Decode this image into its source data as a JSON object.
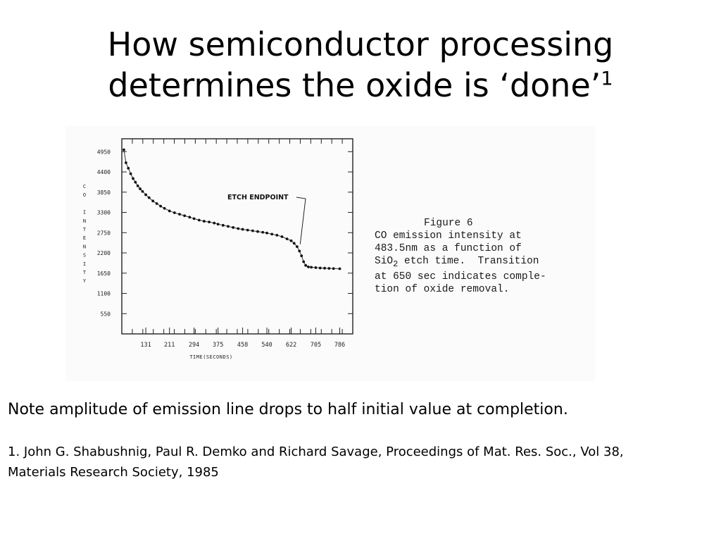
{
  "slide": {
    "title_line1": "How semiconductor processing",
    "title_line2": "determines the oxide is ‘done’",
    "title_superscript": "1",
    "note": "Note amplitude of emission line drops to half initial value at completion.",
    "reference_line1": "1. John G. Shabushnig, Paul R. Demko and Richard Savage, Proceedings of Mat. Res. Soc., Vol 38,",
    "reference_line2": "Materials Research Society, 1985"
  },
  "figure": {
    "caption_title": "Figure 6",
    "caption_lines": [
      "CO emission intensity at",
      "483.5nm as a function of",
      "SiO",
      "at 650 sec indicates comple-",
      "tion of oxide removal."
    ],
    "caption_sio2_subscript": "2",
    "caption_sio2_rest": " etch time.  Transition"
  },
  "chart_data": {
    "type": "scatter",
    "xlabel": "TIME(SECONDS)",
    "ylabel": "CO INTENSITY",
    "xlim": [
      50,
      830
    ],
    "ylim": [
      0,
      5300
    ],
    "x_ticks": [
      "131",
      "211",
      "294",
      "375",
      "458",
      "540",
      "622",
      "705",
      "786"
    ],
    "y_ticks": [
      "550",
      "1100",
      "1650",
      "2200",
      "2750",
      "3300",
      "3850",
      "4400",
      "4950"
    ],
    "annotation": "ETCH ENDPOINT",
    "annotation_x": 650,
    "annotation_y": 2320,
    "grid": false,
    "series": [
      {
        "x": [
          57,
          64,
          72,
          80,
          88,
          96,
          104,
          112,
          120,
          131,
          142,
          155,
          168,
          181,
          194,
          211,
          228,
          245,
          262,
          279,
          294,
          311,
          328,
          345,
          362,
          375,
          392,
          409,
          426,
          443,
          458,
          475,
          492,
          509,
          526,
          540,
          557,
          574,
          591,
          608,
          622,
          632,
          642,
          650,
          657,
          664,
          671,
          680,
          690,
          705,
          720,
          735,
          750,
          765,
          786
        ],
        "y": [
          5000,
          4650,
          4500,
          4350,
          4220,
          4120,
          4020,
          3940,
          3870,
          3780,
          3700,
          3610,
          3540,
          3470,
          3410,
          3340,
          3290,
          3250,
          3210,
          3170,
          3130,
          3090,
          3060,
          3040,
          3010,
          2980,
          2950,
          2920,
          2890,
          2860,
          2840,
          2820,
          2800,
          2780,
          2760,
          2740,
          2710,
          2680,
          2640,
          2580,
          2530,
          2460,
          2370,
          2250,
          2120,
          1960,
          1860,
          1820,
          1810,
          1800,
          1790,
          1785,
          1780,
          1775,
          1770
        ]
      }
    ]
  }
}
